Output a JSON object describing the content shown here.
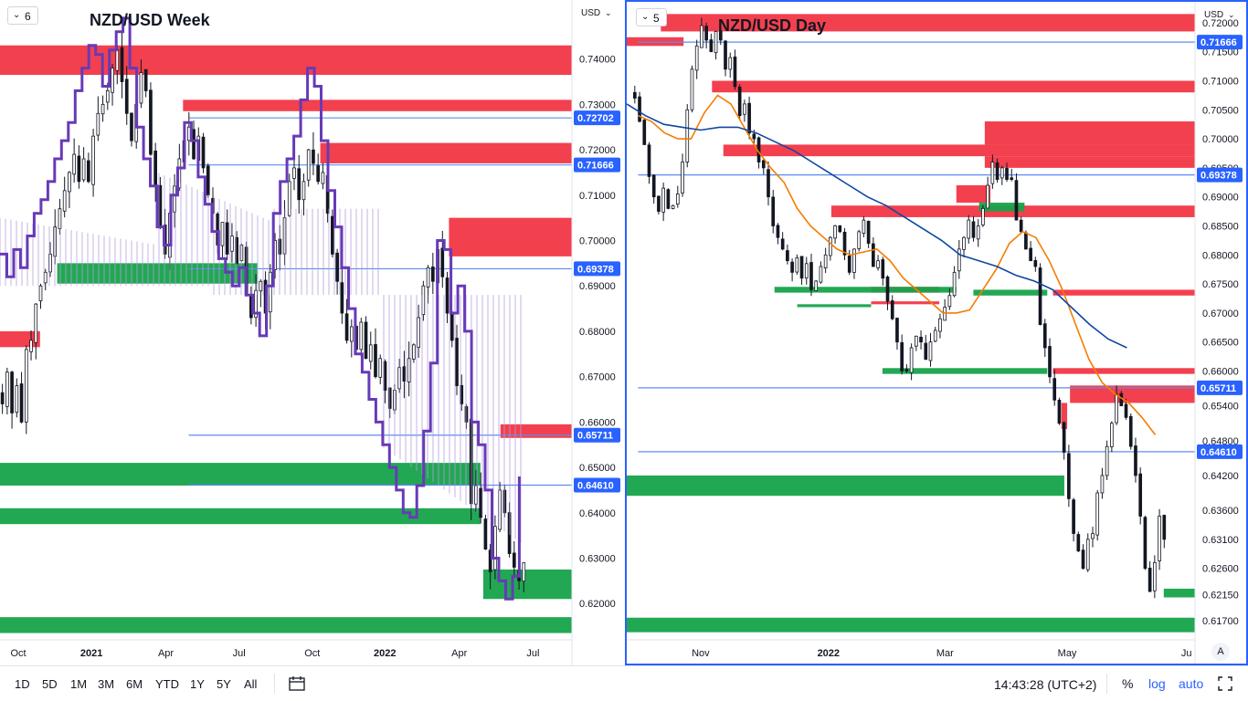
{
  "ui": {
    "range_buttons": [
      "1D",
      "5D",
      "1M",
      "3M",
      "6M",
      "YTD",
      "1Y",
      "5Y",
      "All"
    ],
    "time": "14:43:28 (UTC+2)",
    "pct_label": "%",
    "log_label": "log",
    "auto_label": "auto",
    "colors": {
      "accent": "#2962ff",
      "supply_zone": "#f23645",
      "demand_zone": "#089981",
      "candle": "#131722",
      "ichimoku": "#673ab7",
      "ema_fast": "#f57c00",
      "ema_slow": "#0d47a1"
    }
  },
  "chart_data": [
    {
      "type": "candlestick",
      "title": "NZD/USD Week",
      "badge": "6",
      "currency_label": "USD",
      "ylim": [
        0.612,
        0.753
      ],
      "y_ticks": [
        "0.74000",
        "0.73000",
        "0.72000",
        "0.71000",
        "0.70000",
        "0.69000",
        "0.68000",
        "0.67000",
        "0.66000",
        "0.65000",
        "0.64000",
        "0.63000",
        "0.62000"
      ],
      "y_tick_values": [
        0.74,
        0.73,
        0.72,
        0.71,
        0.7,
        0.69,
        0.68,
        0.67,
        0.66,
        0.65,
        0.64,
        0.63,
        0.62
      ],
      "x_labels": [
        "Oct",
        "2021",
        "Apr",
        "Jul",
        "Oct",
        "2022",
        "Apr",
        "Jul"
      ],
      "price_levels": [
        {
          "label": "0.72702",
          "value": 0.72702
        },
        {
          "label": "0.71666",
          "value": 0.71666
        },
        {
          "label": "0.69378",
          "value": 0.69378
        },
        {
          "label": "0.65711",
          "value": 0.65711
        },
        {
          "label": "0.64610",
          "value": 0.6461
        }
      ],
      "supply_zones": [
        {
          "y1": 0.743,
          "y2": 0.7365,
          "x1": 0.0,
          "x2": 1.0
        },
        {
          "y1": 0.731,
          "y2": 0.7285,
          "x1": 0.32,
          "x2": 1.0
        },
        {
          "y1": 0.7215,
          "y2": 0.717,
          "x1": 0.56,
          "x2": 1.0
        },
        {
          "y1": 0.705,
          "y2": 0.6965,
          "x1": 0.785,
          "x2": 1.0
        },
        {
          "y1": 0.6595,
          "y2": 0.6565,
          "x1": 0.875,
          "x2": 1.0
        },
        {
          "y1": 0.68,
          "y2": 0.6765,
          "x1": 0.0,
          "x2": 0.07
        }
      ],
      "demand_zones": [
        {
          "y1": 0.695,
          "y2": 0.6905,
          "x1": 0.1,
          "x2": 0.45
        },
        {
          "y1": 0.651,
          "y2": 0.646,
          "x1": 0.0,
          "x2": 0.84
        },
        {
          "y1": 0.641,
          "y2": 0.6375,
          "x1": 0.0,
          "x2": 0.84
        },
        {
          "y1": 0.6275,
          "y2": 0.621,
          "x1": 0.845,
          "x2": 1.0
        },
        {
          "y1": 0.617,
          "y2": 0.6135,
          "x1": 0.0,
          "x2": 1.0
        }
      ],
      "path": [
        0.664,
        0.671,
        0.662,
        0.668,
        0.66,
        0.676,
        0.678,
        0.686,
        0.69,
        0.693,
        0.697,
        0.703,
        0.707,
        0.711,
        0.715,
        0.719,
        0.713,
        0.718,
        0.713,
        0.723,
        0.728,
        0.73,
        0.733,
        0.738,
        0.742,
        0.735,
        0.728,
        0.722,
        0.73,
        0.737,
        0.733,
        0.719,
        0.712,
        0.703,
        0.697,
        0.706,
        0.712,
        0.718,
        0.722,
        0.725,
        0.718,
        0.723,
        0.716,
        0.71,
        0.706,
        0.699,
        0.704,
        0.697,
        0.701,
        0.695,
        0.699,
        0.688,
        0.683,
        0.689,
        0.691,
        0.684,
        0.693,
        0.7,
        0.697,
        0.705,
        0.713,
        0.716,
        0.709,
        0.713,
        0.72,
        0.717,
        0.713,
        0.715,
        0.706,
        0.697,
        0.691,
        0.684,
        0.678,
        0.681,
        0.676,
        0.682,
        0.674,
        0.677,
        0.67,
        0.674,
        0.667,
        0.663,
        0.667,
        0.672,
        0.669,
        0.674,
        0.677,
        0.683,
        0.69,
        0.694,
        0.691,
        0.698,
        0.692,
        0.684,
        0.678,
        0.668,
        0.664,
        0.66,
        0.642,
        0.646,
        0.639,
        0.632,
        0.627,
        0.637,
        0.645,
        0.64,
        0.631,
        0.628,
        0.625,
        0.629
      ]
    },
    {
      "type": "candlestick",
      "title": "NZD/USD Day",
      "badge": "5",
      "currency_label": "USD",
      "ylim": [
        0.614,
        0.7236
      ],
      "y_ticks": [
        "0.72000",
        "0.71500",
        "0.71000",
        "0.70500",
        "0.70000",
        "0.69500",
        "0.69000",
        "0.68500",
        "0.68000",
        "0.67500",
        "0.67000",
        "0.66500",
        "0.66000",
        "0.65400",
        "0.64800",
        "0.64200",
        "0.63600",
        "0.63100",
        "0.62600",
        "0.62150",
        "0.61700"
      ],
      "y_tick_values": [
        0.72,
        0.715,
        0.71,
        0.705,
        0.7,
        0.695,
        0.69,
        0.685,
        0.68,
        0.675,
        0.67,
        0.665,
        0.66,
        0.654,
        0.648,
        0.642,
        0.636,
        0.631,
        0.626,
        0.6215,
        0.617
      ],
      "x_labels": [
        "Nov",
        "2022",
        "Mar",
        "May",
        "Ju"
      ],
      "price_levels": [
        {
          "label": "0.71666",
          "value": 0.71666
        },
        {
          "label": "0.69378",
          "value": 0.69378
        },
        {
          "label": "0.65711",
          "value": 0.65711
        },
        {
          "label": "0.64610",
          "value": 0.6461
        }
      ],
      "supply_zones": [
        {
          "y1": 0.7275,
          "y2": 0.7245,
          "x1": 0.06,
          "x2": 1.0
        },
        {
          "y1": 0.7215,
          "y2": 0.7185,
          "x1": 0.06,
          "x2": 1.0
        },
        {
          "y1": 0.7175,
          "y2": 0.716,
          "x1": 0.0,
          "x2": 0.1
        },
        {
          "y1": 0.71,
          "y2": 0.708,
          "x1": 0.15,
          "x2": 1.0
        },
        {
          "y1": 0.703,
          "y2": 0.699,
          "x1": 0.63,
          "x2": 1.0
        },
        {
          "y1": 0.699,
          "y2": 0.697,
          "x1": 0.17,
          "x2": 1.0
        },
        {
          "y1": 0.697,
          "y2": 0.695,
          "x1": 0.63,
          "x2": 1.0
        },
        {
          "y1": 0.692,
          "y2": 0.689,
          "x1": 0.58,
          "x2": 0.64
        },
        {
          "y1": 0.6885,
          "y2": 0.6865,
          "x1": 0.36,
          "x2": 1.0
        },
        {
          "y1": 0.6745,
          "y2": 0.6735,
          "x1": 0.43,
          "x2": 0.55
        },
        {
          "y1": 0.674,
          "y2": 0.673,
          "x1": 0.75,
          "x2": 1.0
        },
        {
          "y1": 0.672,
          "y2": 0.6715,
          "x1": 0.43,
          "x2": 0.55
        },
        {
          "y1": 0.6605,
          "y2": 0.6595,
          "x1": 0.75,
          "x2": 1.0
        },
        {
          "y1": 0.6575,
          "y2": 0.6545,
          "x1": 0.78,
          "x2": 1.0
        },
        {
          "y1": 0.6545,
          "y2": 0.65,
          "x1": 0.765,
          "x2": 0.775
        }
      ],
      "demand_zones": [
        {
          "y1": 0.689,
          "y2": 0.6875,
          "x1": 0.62,
          "x2": 0.7
        },
        {
          "y1": 0.6745,
          "y2": 0.6735,
          "x1": 0.26,
          "x2": 0.58
        },
        {
          "y1": 0.674,
          "y2": 0.673,
          "x1": 0.61,
          "x2": 0.74
        },
        {
          "y1": 0.6715,
          "y2": 0.671,
          "x1": 0.3,
          "x2": 0.43
        },
        {
          "y1": 0.6605,
          "y2": 0.6595,
          "x1": 0.45,
          "x2": 0.74
        },
        {
          "y1": 0.642,
          "y2": 0.6385,
          "x1": 0.0,
          "x2": 0.77
        },
        {
          "y1": 0.6225,
          "y2": 0.621,
          "x1": 0.945,
          "x2": 1.0
        },
        {
          "y1": 0.6175,
          "y2": 0.615,
          "x1": 0.0,
          "x2": 1.0
        }
      ],
      "path": [
        0.707,
        0.703,
        0.699,
        0.6935,
        0.69,
        0.6875,
        0.6915,
        0.688,
        0.6885,
        0.6905,
        0.696,
        0.705,
        0.712,
        0.716,
        0.7195,
        0.717,
        0.715,
        0.7185,
        0.717,
        0.712,
        0.714,
        0.709,
        0.704,
        0.706,
        0.701,
        0.7,
        0.696,
        0.695,
        0.69,
        0.685,
        0.683,
        0.681,
        0.679,
        0.677,
        0.6795,
        0.676,
        0.6785,
        0.674,
        0.6755,
        0.678,
        0.68,
        0.683,
        0.685,
        0.684,
        0.68,
        0.677,
        0.681,
        0.684,
        0.686,
        0.682,
        0.678,
        0.679,
        0.676,
        0.672,
        0.669,
        0.665,
        0.66,
        0.66,
        0.664,
        0.666,
        0.665,
        0.662,
        0.665,
        0.667,
        0.669,
        0.671,
        0.673,
        0.677,
        0.681,
        0.683,
        0.686,
        0.683,
        0.685,
        0.688,
        0.692,
        0.696,
        0.693,
        0.695,
        0.693,
        0.693,
        0.686,
        0.684,
        0.681,
        0.679,
        0.678,
        0.668,
        0.664,
        0.659,
        0.655,
        0.651,
        0.646,
        0.638,
        0.632,
        0.629,
        0.626,
        0.631,
        0.632,
        0.639,
        0.642,
        0.647,
        0.651,
        0.656,
        0.654,
        0.652,
        0.647,
        0.642,
        0.635,
        0.626,
        0.622,
        0.627,
        0.635,
        0.631
      ],
      "ema_fast": [
        0.704,
        0.703,
        0.701,
        0.7,
        0.7,
        0.7045,
        0.7075,
        0.706,
        0.702,
        0.698,
        0.695,
        0.6925,
        0.688,
        0.685,
        0.683,
        0.681,
        0.68,
        0.6805,
        0.681,
        0.679,
        0.676,
        0.674,
        0.672,
        0.67,
        0.67,
        0.6705,
        0.674,
        0.6775,
        0.682,
        0.684,
        0.683,
        0.679,
        0.674,
        0.668,
        0.662,
        0.658,
        0.656,
        0.6545,
        0.652,
        0.649
      ],
      "ema_slow": [
        0.706,
        0.704,
        0.7025,
        0.702,
        0.7015,
        0.702,
        0.702,
        0.701,
        0.6995,
        0.698,
        0.696,
        0.694,
        0.692,
        0.69,
        0.6885,
        0.6865,
        0.6845,
        0.6825,
        0.68,
        0.679,
        0.678,
        0.6765,
        0.6755,
        0.674,
        0.671,
        0.668,
        0.6655,
        0.664
      ]
    }
  ]
}
